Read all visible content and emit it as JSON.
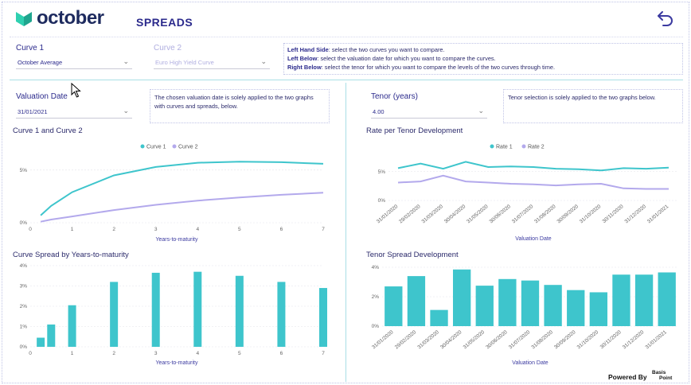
{
  "header": {
    "logo_text": "october",
    "title": "SPREADS",
    "back_icon": "back-arrow-icon"
  },
  "slicers": {
    "curve1": {
      "label": "Curve 1",
      "value": "October Average"
    },
    "curve2": {
      "label": "Curve 2",
      "value": "Euro High Yield Curve"
    },
    "valuation_date": {
      "label": "Valuation Date",
      "value": "31/01/2021"
    },
    "tenor": {
      "label": "Tenor (years)",
      "value": "4.00"
    }
  },
  "info": {
    "line1_bold": "Left Hand Side",
    "line1_text": ": select the two curves you want to compare.",
    "line2_bold": "Left Below",
    "line2_text": ": select the valuation date for which you want to compare the curves.",
    "line3_bold": "Right Below",
    "line3_text": ": select the tenor for which you want to compare the levels of the two curves through time.",
    "valuation_note": "The chosen valuation date is solely applied to the two graphs with curves and spreads, below.",
    "tenor_note": "Tenor selection is solely applied to the two graphs below."
  },
  "colors": {
    "series1": "#3ec5cc",
    "series2": "#b3a9ec",
    "accent": "#2b2a8c"
  },
  "footer": {
    "powered_by": "Powered By",
    "brand_top": "Basis",
    "brand_bottom": "Point"
  },
  "chart_data": [
    {
      "id": "curves",
      "type": "line",
      "title": "Curve 1 and Curve 2",
      "xlabel": "Years-to-maturity",
      "ylabel": "",
      "legend": "top-center",
      "xlim": [
        0,
        7
      ],
      "ylim": [
        0,
        6.5
      ],
      "x_ticks": [
        "0",
        "1",
        "2",
        "3",
        "4",
        "5",
        "6",
        "7"
      ],
      "y_ticks": [
        {
          "v": 0,
          "label": "0%"
        },
        {
          "v": 5,
          "label": "5%"
        }
      ],
      "series": [
        {
          "name": "Curve 1",
          "x": [
            0.25,
            0.5,
            1,
            2,
            3,
            4,
            5,
            6,
            7
          ],
          "y": [
            0.7,
            1.6,
            2.9,
            4.5,
            5.3,
            5.7,
            5.8,
            5.75,
            5.6
          ]
        },
        {
          "name": "Curve 2",
          "x": [
            0.25,
            0.5,
            1,
            2,
            3,
            4,
            5,
            6,
            7
          ],
          "y": [
            0.1,
            0.3,
            0.6,
            1.2,
            1.7,
            2.1,
            2.4,
            2.65,
            2.85
          ]
        }
      ]
    },
    {
      "id": "rate_tenor",
      "type": "line",
      "title": "Rate per Tenor Development",
      "xlabel": "Valuation Date",
      "ylabel": "",
      "legend": "top-center",
      "ylim": [
        0,
        8
      ],
      "y_ticks": [
        {
          "v": 0,
          "label": "0%"
        },
        {
          "v": 5,
          "label": "5%"
        }
      ],
      "categories": [
        "31/01/2020",
        "29/02/2020",
        "31/03/2020",
        "30/04/2020",
        "31/05/2020",
        "30/06/2020",
        "31/07/2020",
        "31/08/2020",
        "30/09/2020",
        "31/10/2020",
        "30/11/2020",
        "31/12/2020",
        "31/01/2021"
      ],
      "tick_labels": [
        "31/01/2020",
        "29/02/2020",
        "31/03/2020",
        "30/04/2020",
        "31/05/2020",
        "30/06/2020",
        "31/07/2020",
        "31/08/2020",
        "30/09/2020",
        "31/10/2020",
        "30/11/2020",
        "31/12/2020",
        "31/01/2021"
      ],
      "series": [
        {
          "name": "Rate 1",
          "values": [
            5.6,
            6.4,
            5.5,
            6.7,
            5.8,
            5.9,
            5.8,
            5.5,
            5.4,
            5.2,
            5.6,
            5.5,
            5.7
          ]
        },
        {
          "name": "Rate 2",
          "values": [
            3.1,
            3.3,
            4.3,
            3.3,
            3.1,
            2.9,
            2.8,
            2.6,
            2.8,
            2.9,
            2.1,
            2.0,
            2.0
          ]
        }
      ]
    },
    {
      "id": "curve_spread",
      "type": "bar",
      "title": "Curve Spread by Years-to-maturity",
      "xlabel": "Years-to-maturity",
      "ylabel": "",
      "xlim": [
        0,
        7
      ],
      "ylim": [
        0,
        4
      ],
      "x_ticks": [
        "0",
        "1",
        "2",
        "3",
        "4",
        "5",
        "6",
        "7"
      ],
      "y_ticks": [
        {
          "v": 0,
          "label": "0%"
        },
        {
          "v": 1,
          "label": "1%"
        },
        {
          "v": 2,
          "label": "2%"
        },
        {
          "v": 3,
          "label": "3%"
        },
        {
          "v": 4,
          "label": "4%"
        }
      ],
      "x": [
        0.25,
        0.5,
        1,
        2,
        3,
        4,
        5,
        6,
        7
      ],
      "values": [
        0.45,
        1.1,
        2.05,
        3.2,
        3.65,
        3.7,
        3.5,
        3.2,
        2.9
      ]
    },
    {
      "id": "tenor_spread",
      "type": "bar",
      "title": "Tenor Spread Development",
      "xlabel": "Valuation Date",
      "ylabel": "",
      "ylim": [
        0,
        4
      ],
      "y_ticks": [
        {
          "v": 0,
          "label": "0%"
        },
        {
          "v": 2,
          "label": "2%"
        },
        {
          "v": 4,
          "label": "4%"
        }
      ],
      "categories": [
        "31/01/2020",
        "29/02/2020",
        "31/03/2020",
        "30/04/2020",
        "31/05/2020",
        "30/06/2020",
        "31/07/2020",
        "31/08/2020",
        "30/09/2020",
        "31/10/2020",
        "30/11/2020",
        "31/12/2020",
        "31/01/2021"
      ],
      "tick_labels": [
        "31/01/2020",
        "29/02/2020",
        "31/03/2020",
        "30/04/2020",
        "31/05/2020",
        "30/06/2020",
        "31/07/2020",
        "31/08/2020",
        "30/09/2020",
        "31/10/2020",
        "30/11/2020",
        "31/12/2020",
        "31/01/2021"
      ],
      "values": [
        2.7,
        3.4,
        1.1,
        3.85,
        2.75,
        3.2,
        3.1,
        2.8,
        2.45,
        2.3,
        3.5,
        3.5,
        3.65
      ]
    }
  ]
}
